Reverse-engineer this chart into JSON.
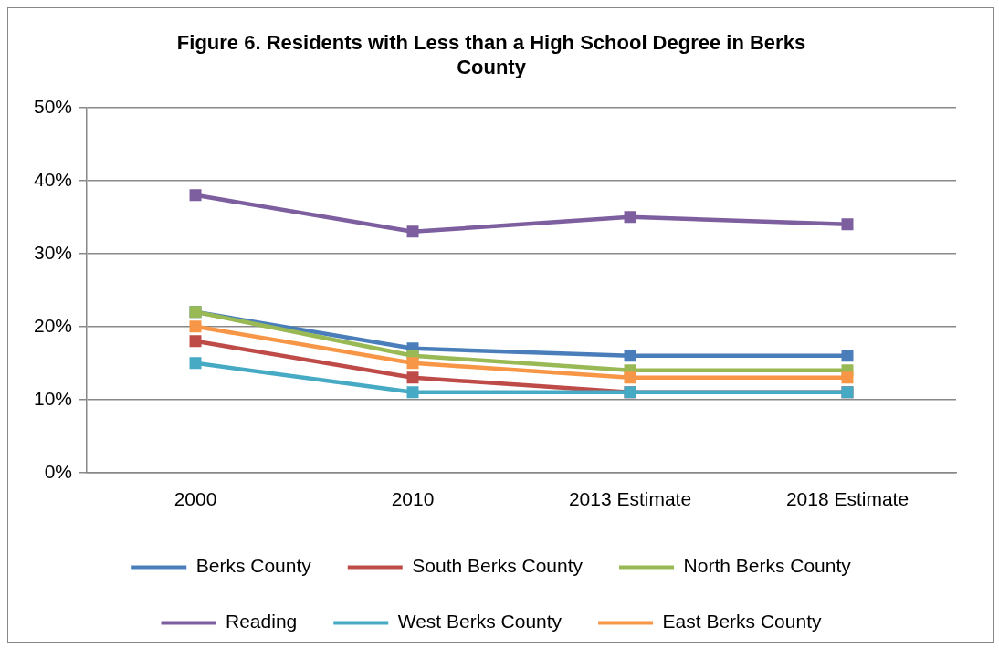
{
  "chart_data": {
    "type": "line",
    "title": "Figure 6. Residents with Less than a High School Degree in Berks County",
    "categories": [
      "2000",
      "2010",
      "2013 Estimate",
      "2018 Estimate"
    ],
    "series": [
      {
        "name": "Berks County",
        "color": "#4a7ebb",
        "values": [
          22,
          17,
          16,
          16
        ]
      },
      {
        "name": "South Berks County",
        "color": "#be4b48",
        "values": [
          18,
          13,
          11,
          11
        ]
      },
      {
        "name": "North Berks County",
        "color": "#98b954",
        "values": [
          22,
          16,
          14,
          14
        ]
      },
      {
        "name": "Reading",
        "color": "#7d5fa0",
        "values": [
          38,
          33,
          35,
          34
        ]
      },
      {
        "name": "West Berks County",
        "color": "#46aac5",
        "values": [
          15,
          11,
          11,
          11
        ]
      },
      {
        "name": "East Berks County",
        "color": "#f79646",
        "values": [
          20,
          15,
          13,
          13
        ]
      }
    ],
    "ylim": [
      0,
      50
    ],
    "yticks": [
      {
        "value": 0,
        "label": "0%"
      },
      {
        "value": 10,
        "label": "10%"
      },
      {
        "value": 20,
        "label": "20%"
      },
      {
        "value": 30,
        "label": "30%"
      },
      {
        "value": 40,
        "label": "40%"
      },
      {
        "value": 50,
        "label": "50%"
      }
    ],
    "grid": "y",
    "legend": "bottom",
    "marker": "square",
    "line_style": "solid"
  }
}
